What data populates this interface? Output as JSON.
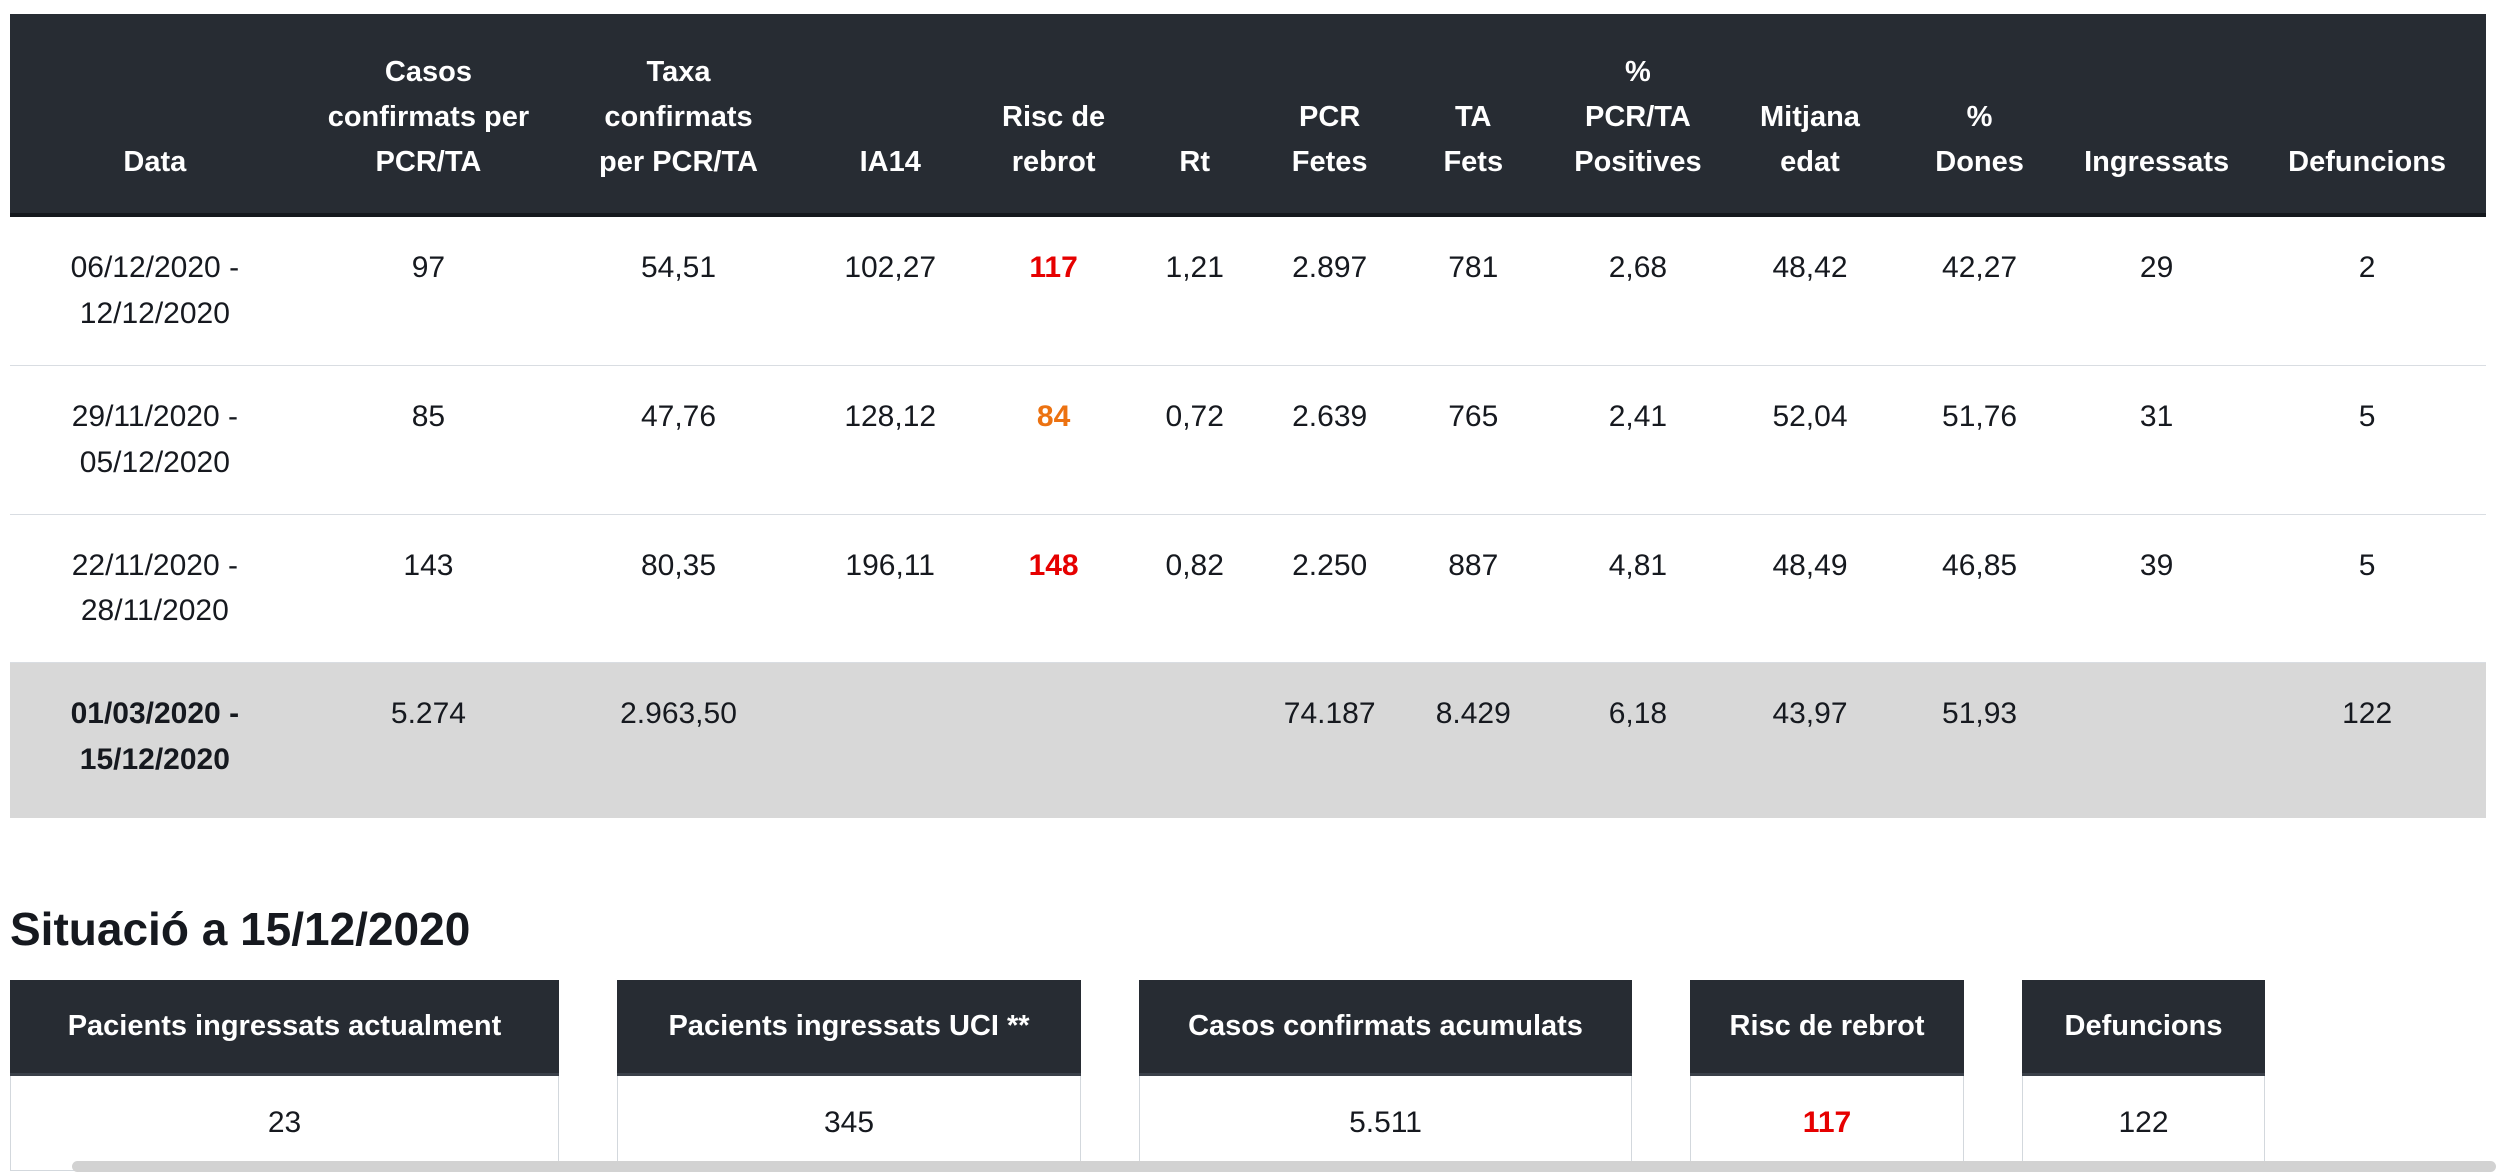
{
  "colors": {
    "header_bg": "#272c33",
    "risk_red": "#e60000",
    "risk_orange": "#ec7211",
    "total_row_bg": "#d8d8d8"
  },
  "table": {
    "columns": [
      "Data",
      "Casos\nconfirmats per\nPCR/TA",
      "Taxa\nconfirmats\nper PCR/TA",
      "IA14",
      "Risc de\nrebrot",
      "Rt",
      "PCR\nFetes",
      "TA\nFets",
      "%\nPCR/TA\nPositives",
      "Mitjana\nedat",
      "%\nDones",
      "Ingressats",
      "Defuncions"
    ],
    "rows": [
      {
        "cells": [
          "06/12/2020 -\n12/12/2020",
          "97",
          "54,51",
          "102,27",
          "117",
          "1,21",
          "2.897",
          "781",
          "2,68",
          "48,42",
          "42,27",
          "29",
          "2"
        ],
        "risc_color": "#e60000"
      },
      {
        "cells": [
          "29/11/2020 -\n05/12/2020",
          "85",
          "47,76",
          "128,12",
          "84",
          "0,72",
          "2.639",
          "765",
          "2,41",
          "52,04",
          "51,76",
          "31",
          "5"
        ],
        "risc_color": "#ec7211"
      },
      {
        "cells": [
          "22/11/2020 -\n28/11/2020",
          "143",
          "80,35",
          "196,11",
          "148",
          "0,82",
          "2.250",
          "887",
          "4,81",
          "48,49",
          "46,85",
          "39",
          "5"
        ],
        "risc_color": "#e60000"
      }
    ],
    "total": {
      "cells": [
        "01/03/2020 -\n15/12/2020",
        "5.274",
        "2.963,50",
        "",
        "",
        "",
        "74.187",
        "8.429",
        "6,18",
        "43,97",
        "51,93",
        "",
        "122"
      ]
    }
  },
  "situation": {
    "title": "Situació a 15/12/2020",
    "cards": [
      {
        "label": "Pacients ingressats actualment",
        "value": "23"
      },
      {
        "label": "Pacients ingressats UCI **",
        "value": "345"
      },
      {
        "label": "Casos confirmats acumulats",
        "value": "5.511"
      },
      {
        "label": "Risc de rebrot",
        "value": "117",
        "value_color": "#e60000"
      },
      {
        "label": "Defuncions",
        "value": "122"
      }
    ]
  }
}
